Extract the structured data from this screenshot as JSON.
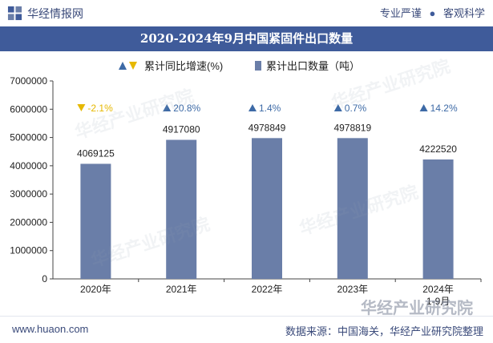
{
  "header": {
    "site_name": "华经情报网",
    "tagline_1": "专业严谨",
    "tagline_2": "客观科学"
  },
  "footer": {
    "url": "www.huaon.com",
    "source": "数据来源：中国海关，华经产业研究院整理"
  },
  "brand_stamp": "华经产业研究院",
  "watermark": "华经产业研究院",
  "colors": {
    "bar": "#6a7ea8",
    "title_bg": "#3f5b9a",
    "up": "#3d6aa6",
    "down": "#e6b800"
  },
  "chart_data": {
    "type": "bar",
    "title": "2020-2024年9月中国紧固件出口数量",
    "categories": [
      "2020年",
      "2021年",
      "2022年",
      "2023年",
      "2024年\n1-9月"
    ],
    "series": [
      {
        "name": "累计出口数量（吨）",
        "values": [
          4069125,
          4917080,
          4978849,
          4978819,
          4222520
        ]
      },
      {
        "name": "累计同比增速(%)",
        "values": [
          -2.1,
          20.8,
          1.4,
          0.7,
          14.2
        ],
        "labels": [
          "-2.1%",
          "20.8%",
          "1.4%",
          "0.7%",
          "14.2%"
        ]
      }
    ],
    "value_labels": [
      "4069125",
      "4917080",
      "4978849",
      "4978819",
      "4222520"
    ],
    "yticks": [
      "0",
      "1000000",
      "2000000",
      "3000000",
      "4000000",
      "5000000",
      "6000000",
      "7000000"
    ],
    "ylim": [
      0,
      7000000
    ],
    "legend": {
      "growth": "累计同比增速(%)",
      "volume": "累计出口数量（吨）"
    },
    "legend_position": "top"
  }
}
